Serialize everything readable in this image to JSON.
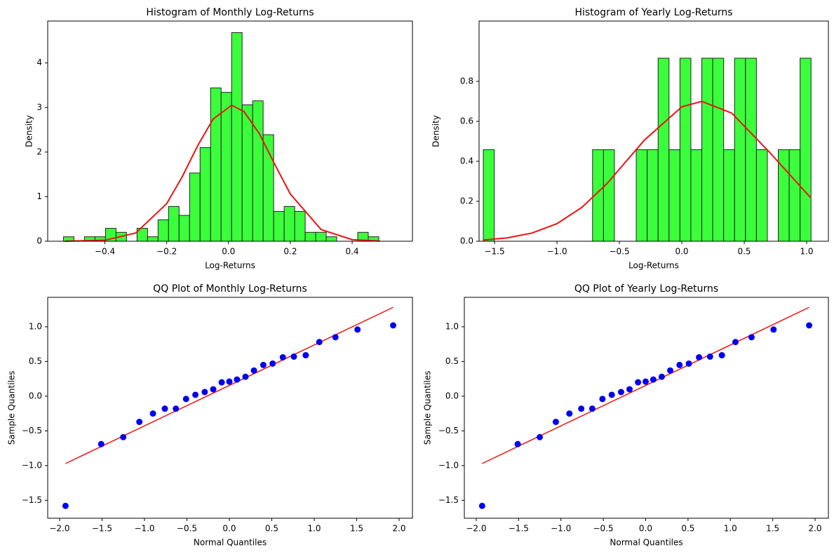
{
  "chart_data": [
    {
      "type": "histogram",
      "title": "Histogram of Monthly Log-Returns",
      "xlabel": "Log-Returns",
      "ylabel": "Density",
      "bins": [
        -0.534,
        -0.5,
        -0.466,
        -0.432,
        -0.398,
        -0.364,
        -0.33,
        -0.296,
        -0.262,
        -0.228,
        -0.194,
        -0.16,
        -0.126,
        -0.092,
        -0.058,
        -0.024,
        0.01,
        0.044,
        0.078,
        0.112,
        0.146,
        0.18,
        0.214,
        0.248,
        0.282,
        0.316,
        0.35,
        0.384,
        0.418,
        0.452,
        0.486
      ],
      "values": [
        0.1,
        0,
        0.1,
        0.1,
        0.29,
        0.2,
        0,
        0.29,
        0.1,
        0.48,
        0.78,
        0.58,
        1.53,
        2.1,
        3.44,
        3.34,
        4.68,
        3.06,
        3.15,
        2.39,
        0.67,
        0.78,
        0.67,
        0.2,
        0.2,
        0.1,
        0,
        0,
        0.2,
        0.1
      ],
      "color": "#3cff3c",
      "edgecolor": "#222222",
      "curve": {
        "x": [
          -0.53,
          -0.4,
          -0.3,
          -0.2,
          -0.15,
          -0.1,
          -0.05,
          0.01,
          0.05,
          0.1,
          0.15,
          0.2,
          0.3,
          0.4,
          0.49
        ],
        "values": [
          0.0006,
          0.023,
          0.185,
          0.843,
          1.444,
          2.14,
          2.74,
          3.05,
          2.91,
          2.41,
          1.72,
          1.06,
          0.26,
          0.036,
          0.004
        ],
        "color": "#ee1111"
      },
      "xlim": [
        -0.585,
        0.595
      ],
      "ylim": [
        0,
        4.94
      ],
      "xticks": [
        {
          "value": -0.4,
          "label": "−0.4"
        },
        {
          "value": -0.2,
          "label": "−0.2"
        },
        {
          "value": 0,
          "label": "0.0"
        },
        {
          "value": 0.2,
          "label": "0.2"
        },
        {
          "value": 0.4,
          "label": "0.4"
        }
      ],
      "yticks": [
        0,
        1,
        2,
        3,
        4
      ],
      "grid": false
    },
    {
      "type": "histogram",
      "title": "Histogram of Yearly Log-Returns",
      "xlabel": "Log-Returns",
      "ylabel": "Density",
      "bins": [
        -1.59,
        -1.5025,
        -1.415,
        -1.3275,
        -1.24,
        -1.1525,
        -1.065,
        -0.9775,
        -0.89,
        -0.8025,
        -0.715,
        -0.6275,
        -0.54,
        -0.4525,
        -0.365,
        -0.2775,
        -0.19,
        -0.1025,
        -0.015,
        0.0725,
        0.16,
        0.2475,
        0.335,
        0.4225,
        0.51,
        0.5975,
        0.685,
        0.7725,
        0.86,
        0.9475,
        1.035
      ],
      "values": [
        0.458,
        0,
        0,
        0,
        0,
        0,
        0,
        0,
        0,
        0,
        0.458,
        0.458,
        0,
        0,
        0.458,
        0.458,
        0.916,
        0.458,
        0.916,
        0.458,
        0.916,
        0.916,
        0.458,
        0.916,
        0.916,
        0.458,
        0,
        0.458,
        0.458,
        0.916
      ],
      "color": "#3cff3c",
      "edgecolor": "#222222",
      "curve": {
        "x": [
          -1.59,
          -1.4,
          -1.2,
          -1.0,
          -0.8,
          -0.6,
          -0.3,
          0,
          0.16,
          0.4,
          0.7,
          1.03
        ],
        "values": [
          0.0063,
          0.0166,
          0.041,
          0.088,
          0.17,
          0.288,
          0.506,
          0.673,
          0.7,
          0.641,
          0.447,
          0.219
        ],
        "color": "#ee1111"
      },
      "xlim": [
        -1.624,
        1.174
      ],
      "ylim": [
        0,
        1.102
      ],
      "xticks": [
        {
          "value": -1.5,
          "label": "−1.5"
        },
        {
          "value": -1,
          "label": "−1.0"
        },
        {
          "value": -0.5,
          "label": "−0.5"
        },
        {
          "value": 0,
          "label": "0.0"
        },
        {
          "value": 0.5,
          "label": "0.5"
        },
        {
          "value": 1,
          "label": "1.0"
        }
      ],
      "yticks": [
        {
          "value": 0,
          "label": "0.0"
        },
        {
          "value": 0.2,
          "label": "0.2"
        },
        {
          "value": 0.4,
          "label": "0.4"
        },
        {
          "value": 0.6,
          "label": "0.6"
        },
        {
          "value": 0.8,
          "label": "0.8"
        }
      ],
      "grid": false
    },
    {
      "type": "scatter",
      "title": "QQ Plot of Monthly Log-Returns",
      "xlabel": "Normal Quantiles",
      "ylabel": "Sample Quantiles",
      "x": [
        -1.93,
        -1.51,
        -1.25,
        -1.06,
        -0.9,
        -0.76,
        -0.63,
        -0.51,
        -0.4,
        -0.29,
        -0.19,
        -0.09,
        0,
        0.09,
        0.19,
        0.29,
        0.4,
        0.51,
        0.63,
        0.76,
        0.9,
        1.06,
        1.25,
        1.51,
        1.93
      ],
      "values": [
        -1.58,
        -0.69,
        -0.59,
        -0.37,
        -0.25,
        -0.18,
        -0.18,
        -0.04,
        0.02,
        0.06,
        0.1,
        0.2,
        0.21,
        0.24,
        0.28,
        0.37,
        0.45,
        0.47,
        0.56,
        0.57,
        0.59,
        0.78,
        0.85,
        0.96,
        1.02
      ],
      "color": "#0000ee",
      "fit_line": {
        "x": [
          -1.93,
          1.93
        ],
        "values": [
          -0.97,
          1.28
        ],
        "color": "#ee1111"
      },
      "xlim": [
        -2.14,
        2.157
      ],
      "ylim": [
        -1.758,
        1.424
      ],
      "xticks": [
        {
          "value": -2,
          "label": "−2.0"
        },
        {
          "value": -1.5,
          "label": "−1.5"
        },
        {
          "value": -1,
          "label": "−1.0"
        },
        {
          "value": -0.5,
          "label": "−0.5"
        },
        {
          "value": 0,
          "label": "0.0"
        },
        {
          "value": 0.5,
          "label": "0.5"
        },
        {
          "value": 1,
          "label": "1.0"
        },
        {
          "value": 1.5,
          "label": "1.5"
        },
        {
          "value": 2,
          "label": "2.0"
        }
      ],
      "yticks": [
        {
          "value": -1.5,
          "label": "−1.5"
        },
        {
          "value": -1,
          "label": "−1.0"
        },
        {
          "value": -0.5,
          "label": "−0.5"
        },
        {
          "value": 0,
          "label": "0.0"
        },
        {
          "value": 0.5,
          "label": "0.5"
        },
        {
          "value": 1,
          "label": "1.0"
        }
      ],
      "grid": false
    },
    {
      "type": "scatter",
      "title": "QQ Plot of Yearly Log-Returns",
      "xlabel": "Normal Quantiles",
      "ylabel": "Sample Quantiles",
      "x": [
        -1.93,
        -1.51,
        -1.25,
        -1.06,
        -0.9,
        -0.76,
        -0.63,
        -0.51,
        -0.4,
        -0.29,
        -0.19,
        -0.09,
        0,
        0.09,
        0.19,
        0.29,
        0.4,
        0.51,
        0.63,
        0.76,
        0.9,
        1.06,
        1.25,
        1.51,
        1.93
      ],
      "values": [
        -1.58,
        -0.69,
        -0.59,
        -0.37,
        -0.25,
        -0.18,
        -0.18,
        -0.04,
        0.02,
        0.06,
        0.1,
        0.2,
        0.21,
        0.24,
        0.28,
        0.37,
        0.45,
        0.47,
        0.56,
        0.57,
        0.59,
        0.78,
        0.85,
        0.96,
        1.02
      ],
      "color": "#0000ee",
      "fit_line": {
        "x": [
          -1.93,
          1.93
        ],
        "values": [
          -0.97,
          1.28
        ],
        "color": "#ee1111"
      },
      "xlim": [
        -2.14,
        2.157
      ],
      "ylim": [
        -1.758,
        1.424
      ],
      "xticks": [
        {
          "value": -2,
          "label": "−2.0"
        },
        {
          "value": -1.5,
          "label": "−1.5"
        },
        {
          "value": -1,
          "label": "−1.0"
        },
        {
          "value": -0.5,
          "label": "−0.5"
        },
        {
          "value": 0,
          "label": "0.0"
        },
        {
          "value": 0.5,
          "label": "0.5"
        },
        {
          "value": 1,
          "label": "1.0"
        },
        {
          "value": 1.5,
          "label": "1.5"
        },
        {
          "value": 2,
          "label": "2.0"
        }
      ],
      "yticks": [
        {
          "value": -1.5,
          "label": "−1.5"
        },
        {
          "value": -1,
          "label": "−1.0"
        },
        {
          "value": -0.5,
          "label": "−0.5"
        },
        {
          "value": 0,
          "label": "0.0"
        },
        {
          "value": 0.5,
          "label": "0.5"
        },
        {
          "value": 1,
          "label": "1.0"
        }
      ],
      "grid": false
    }
  ]
}
